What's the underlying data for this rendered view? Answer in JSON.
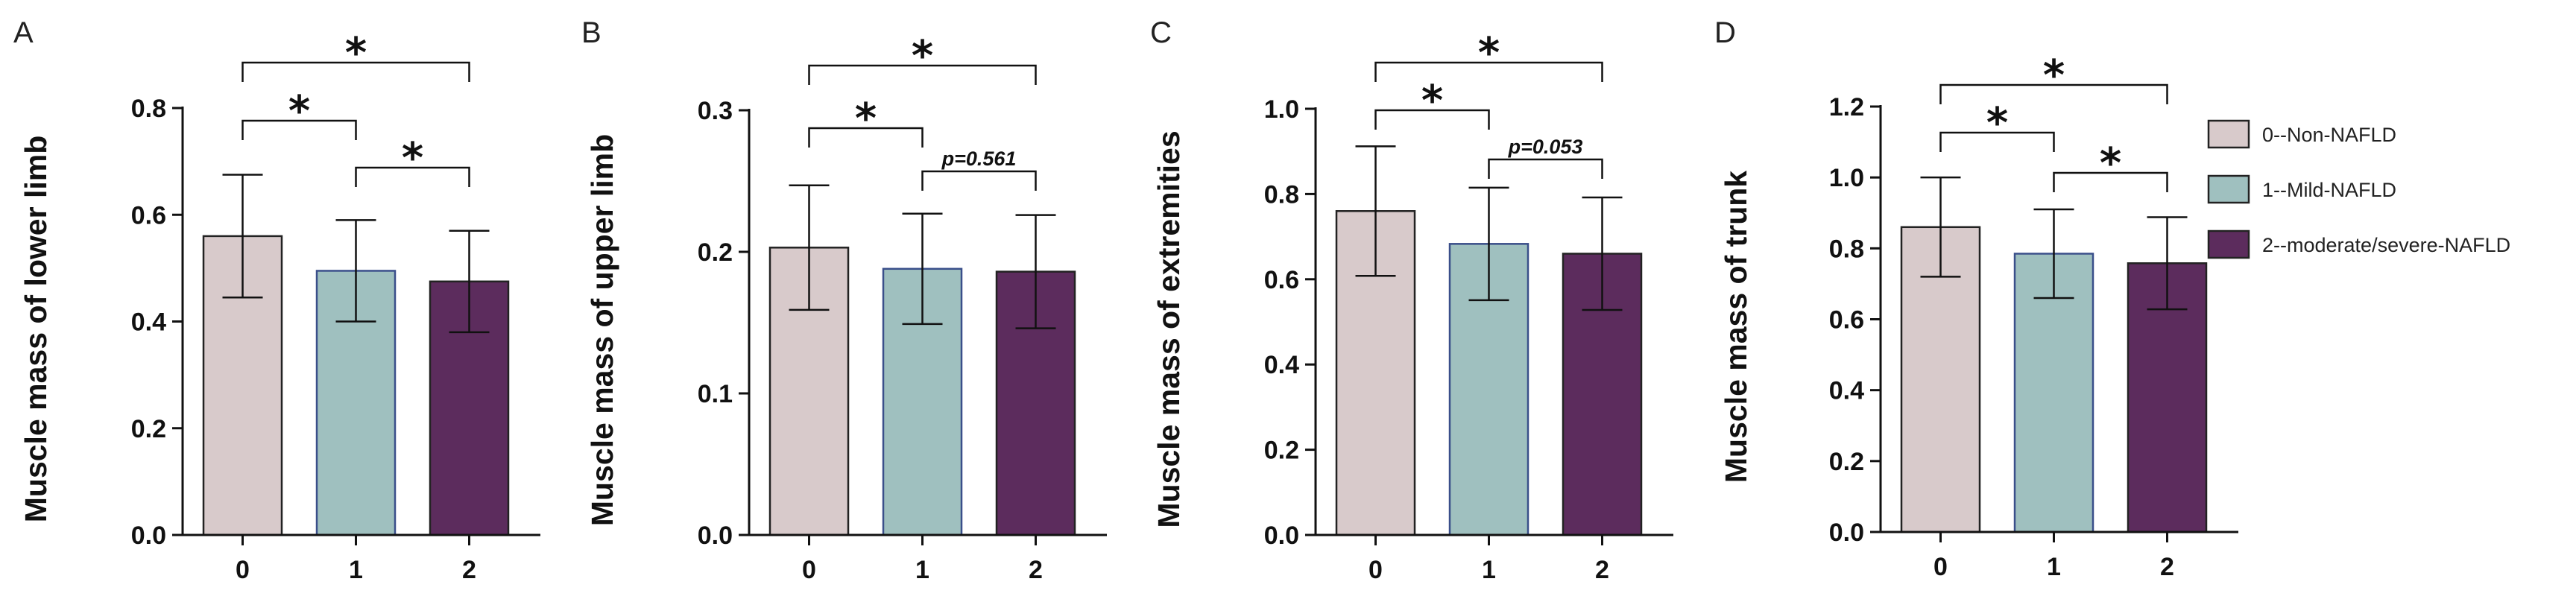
{
  "colors": {
    "group0": "#d8cacb",
    "group1": "#9fc0bf",
    "group2": "#5c2c5d",
    "border": "#222222",
    "border_mid": "#3a4f8a"
  },
  "legend": {
    "items": [
      {
        "label": "0--Non-NAFLD",
        "color_key": "group0"
      },
      {
        "label": "1--Mild-NAFLD",
        "color_key": "group1"
      },
      {
        "label": "2--moderate/severe-NAFLD",
        "color_key": "group2"
      }
    ]
  },
  "chart_data": [
    {
      "panel": "A",
      "type": "bar",
      "ylabel": "Muscle mass of lower limb",
      "categories": [
        "0",
        "1",
        "2"
      ],
      "values": [
        0.56,
        0.495,
        0.475
      ],
      "errors": [
        0.115,
        0.095,
        0.095
      ],
      "ylim": [
        0,
        0.8
      ],
      "yticks": [
        0.0,
        0.2,
        0.4,
        0.6,
        0.8
      ],
      "yticklabels": [
        "0.0",
        "0.2",
        "0.4",
        "0.6",
        "0.8"
      ],
      "comparisons": [
        {
          "from": 0,
          "to": 2,
          "label": "*"
        },
        {
          "from": 0,
          "to": 1,
          "label": "*"
        },
        {
          "from": 1,
          "to": 2,
          "label": "*"
        }
      ]
    },
    {
      "panel": "B",
      "type": "bar",
      "ylabel": "Muscle mass of upper limb",
      "categories": [
        "0",
        "1",
        "2"
      ],
      "values": [
        0.203,
        0.188,
        0.186
      ],
      "errors": [
        0.044,
        0.039,
        0.04
      ],
      "ylim": [
        0,
        0.3
      ],
      "yticks": [
        0.0,
        0.1,
        0.2,
        0.3
      ],
      "yticklabels": [
        "0.0",
        "0.1",
        "0.2",
        "0.3"
      ],
      "comparisons": [
        {
          "from": 0,
          "to": 2,
          "label": "*"
        },
        {
          "from": 0,
          "to": 1,
          "label": "*"
        },
        {
          "from": 1,
          "to": 2,
          "label": "p=0.561"
        }
      ]
    },
    {
      "panel": "C",
      "type": "bar",
      "ylabel": "Muscle mass of extremities",
      "categories": [
        "0",
        "1",
        "2"
      ],
      "values": [
        0.76,
        0.683,
        0.66
      ],
      "errors": [
        0.152,
        0.132,
        0.132
      ],
      "ylim": [
        0,
        1.0
      ],
      "yticks": [
        0.0,
        0.2,
        0.4,
        0.6,
        0.8,
        1.0
      ],
      "yticklabels": [
        "0.0",
        "0.2",
        "0.4",
        "0.6",
        "0.8",
        "1.0"
      ],
      "comparisons": [
        {
          "from": 0,
          "to": 2,
          "label": "*"
        },
        {
          "from": 0,
          "to": 1,
          "label": "*"
        },
        {
          "from": 1,
          "to": 2,
          "label": "p=0.053"
        }
      ]
    },
    {
      "panel": "D",
      "type": "bar",
      "ylabel": "Muscle mass of trunk",
      "categories": [
        "0",
        "1",
        "2"
      ],
      "values": [
        0.86,
        0.785,
        0.758
      ],
      "errors": [
        0.14,
        0.125,
        0.13
      ],
      "ylim": [
        0,
        1.2
      ],
      "yticks": [
        0.0,
        0.2,
        0.4,
        0.6,
        0.8,
        1.0,
        1.2
      ],
      "yticklabels": [
        "0.0",
        "0.2",
        "0.4",
        "0.6",
        "0.8",
        "1.0",
        "1.2"
      ],
      "comparisons": [
        {
          "from": 0,
          "to": 2,
          "label": "*"
        },
        {
          "from": 0,
          "to": 1,
          "label": "*"
        },
        {
          "from": 1,
          "to": 2,
          "label": "*"
        }
      ]
    }
  ]
}
